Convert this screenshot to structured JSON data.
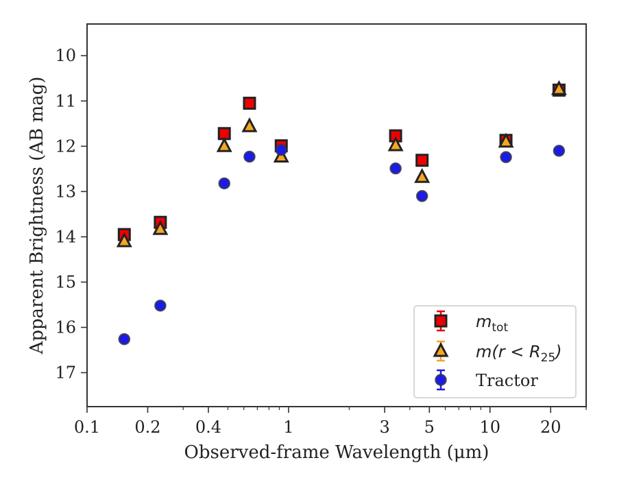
{
  "chart_data": {
    "type": "scatter",
    "xlabel": "Observed-frame Wavelength (μm)",
    "ylabel": "Apparent Brightness (AB mag)",
    "x_scale": "log",
    "y_inverted": true,
    "xlim": [
      0.1,
      30
    ],
    "ylim": [
      17.75,
      9.3
    ],
    "x_ticks": [
      {
        "value": 0.1,
        "label": "0.1"
      },
      {
        "value": 0.2,
        "label": "0.2"
      },
      {
        "value": 0.4,
        "label": "0.4"
      },
      {
        "value": 1,
        "label": "1"
      },
      {
        "value": 3,
        "label": "3"
      },
      {
        "value": 5,
        "label": "5"
      },
      {
        "value": 10,
        "label": "10"
      },
      {
        "value": 20,
        "label": "20"
      }
    ],
    "y_ticks": [
      {
        "value": 10,
        "label": "10"
      },
      {
        "value": 11,
        "label": "11"
      },
      {
        "value": 12,
        "label": "12"
      },
      {
        "value": 13,
        "label": "13"
      },
      {
        "value": 14,
        "label": "14"
      },
      {
        "value": 15,
        "label": "15"
      },
      {
        "value": 16,
        "label": "16"
      },
      {
        "value": 17,
        "label": "17"
      }
    ],
    "grid": false,
    "legend_position": "bottom-right",
    "series": [
      {
        "name": "m_tot",
        "marker": "square",
        "color": "#ee0000",
        "x": [
          0.153,
          0.231,
          0.48,
          0.64,
          0.92,
          3.4,
          4.6,
          12.0,
          22.0
        ],
        "y": [
          13.95,
          13.68,
          11.72,
          11.05,
          11.99,
          11.77,
          12.31,
          11.87,
          10.76
        ]
      },
      {
        "name": "m(r<R25)",
        "marker": "triangle",
        "color": "#f5a623",
        "x": [
          0.153,
          0.231,
          0.48,
          0.64,
          0.92,
          3.4,
          4.6,
          12.0,
          22.0
        ],
        "y": [
          14.1,
          13.83,
          12.0,
          11.56,
          12.23,
          11.98,
          12.68,
          11.9,
          10.74
        ]
      },
      {
        "name": "Tractor",
        "marker": "circle",
        "color": "#1a1aee",
        "x": [
          0.153,
          0.231,
          0.48,
          0.64,
          0.92,
          3.4,
          4.6,
          12.0,
          22.0
        ],
        "y": [
          16.26,
          15.52,
          12.82,
          12.23,
          12.08,
          12.49,
          13.1,
          12.24,
          12.1
        ]
      }
    ],
    "legend_entries": [
      {
        "base": "m",
        "sub": "tot",
        "style": "subscript"
      },
      {
        "text": "m(r < R",
        "sub": "25",
        "tail": ")",
        "style": "math"
      },
      {
        "text": "Tractor",
        "style": "plain"
      }
    ]
  },
  "colors": {
    "edge": "#222222",
    "axis": "#333333",
    "legend_border": "#cccccc"
  }
}
